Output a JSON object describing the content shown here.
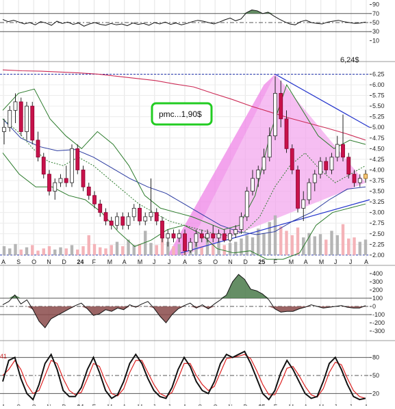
{
  "chart_data": [
    {
      "panel": "rsi",
      "type": "line",
      "y_ticks": [
        90,
        70,
        50,
        30,
        10
      ],
      "ylim": [
        0,
        100
      ],
      "levels": [
        70,
        50,
        30
      ],
      "grid": true,
      "series": [
        {
          "values": [
            57,
            52,
            55,
            51,
            47,
            50,
            45,
            52,
            49,
            44,
            53,
            48,
            51,
            46,
            49,
            42,
            47,
            50,
            46,
            44,
            48,
            45,
            47,
            43,
            49,
            46,
            48,
            44,
            50,
            47,
            51,
            46,
            49,
            45,
            48,
            52,
            55,
            53,
            50,
            47,
            51,
            56,
            60,
            54,
            58,
            72,
            78,
            76,
            70,
            73,
            65,
            58,
            52,
            47,
            45,
            52,
            55,
            50,
            48,
            47,
            51,
            53,
            55,
            52,
            50,
            48,
            49,
            51
          ]
        }
      ],
      "fill_above": 70,
      "fill_color": "#4a7a4a"
    },
    {
      "panel": "price",
      "type": "candlestick",
      "y_ticks": [
        "6.25",
        "6.00",
        "5.75",
        "5.50",
        "5.25",
        "5.00",
        "4.75",
        "4.50",
        "4.25",
        "4.00",
        "3.75",
        "3.50",
        "3.25",
        "3.00",
        "2.75",
        "2.50",
        "2.25",
        "2.00"
      ],
      "ylim": [
        1.95,
        6.45
      ],
      "x_ticks": [
        "A",
        "S",
        "O",
        "N",
        "D",
        "24",
        "F",
        "M",
        "A",
        "M",
        "J",
        "J",
        "A",
        "S",
        "O",
        "N",
        "D",
        "25",
        "F",
        "M",
        "A",
        "M",
        "J",
        "J",
        "A"
      ],
      "annotations": {
        "price_label": "6,24$",
        "badge": "pmc...1,90$"
      },
      "candles": [
        {
          "o": 4.9,
          "h": 5.2,
          "l": 4.6,
          "c": 5.0
        },
        {
          "o": 5.0,
          "h": 5.5,
          "l": 4.9,
          "c": 5.4
        },
        {
          "o": 5.4,
          "h": 5.8,
          "l": 5.1,
          "c": 5.6
        },
        {
          "o": 5.6,
          "h": 5.7,
          "l": 4.8,
          "c": 4.9
        },
        {
          "o": 4.9,
          "h": 5.6,
          "l": 4.7,
          "c": 5.5
        },
        {
          "o": 5.5,
          "h": 5.6,
          "l": 4.6,
          "c": 4.7
        },
        {
          "o": 4.7,
          "h": 4.9,
          "l": 4.2,
          "c": 4.3
        },
        {
          "o": 4.3,
          "h": 4.4,
          "l": 3.8,
          "c": 3.9
        },
        {
          "o": 3.9,
          "h": 4.0,
          "l": 3.4,
          "c": 3.5
        },
        {
          "o": 3.5,
          "h": 3.8,
          "l": 3.3,
          "c": 3.7
        },
        {
          "o": 3.7,
          "h": 3.9,
          "l": 3.6,
          "c": 3.8
        },
        {
          "o": 3.8,
          "h": 4.1,
          "l": 3.6,
          "c": 3.7
        },
        {
          "o": 3.7,
          "h": 4.6,
          "l": 3.6,
          "c": 4.5
        },
        {
          "o": 4.5,
          "h": 4.6,
          "l": 3.9,
          "c": 4.0
        },
        {
          "o": 4.0,
          "h": 4.1,
          "l": 3.5,
          "c": 3.6
        },
        {
          "o": 3.6,
          "h": 3.7,
          "l": 3.3,
          "c": 3.4
        },
        {
          "o": 3.4,
          "h": 3.5,
          "l": 3.1,
          "c": 3.2
        },
        {
          "o": 3.2,
          "h": 3.3,
          "l": 2.9,
          "c": 3.0
        },
        {
          "o": 3.0,
          "h": 3.1,
          "l": 2.7,
          "c": 2.8
        },
        {
          "o": 2.8,
          "h": 2.9,
          "l": 2.6,
          "c": 2.7
        },
        {
          "o": 2.7,
          "h": 3.0,
          "l": 2.6,
          "c": 2.9
        },
        {
          "o": 2.9,
          "h": 3.0,
          "l": 2.6,
          "c": 2.7
        },
        {
          "o": 2.7,
          "h": 3.0,
          "l": 2.6,
          "c": 2.9
        },
        {
          "o": 2.9,
          "h": 3.2,
          "l": 2.8,
          "c": 3.1
        },
        {
          "o": 3.1,
          "h": 3.2,
          "l": 2.7,
          "c": 2.8
        },
        {
          "o": 2.8,
          "h": 3.0,
          "l": 2.7,
          "c": 2.9
        },
        {
          "o": 2.9,
          "h": 3.8,
          "l": 2.8,
          "c": 3.0
        },
        {
          "o": 3.0,
          "h": 3.1,
          "l": 2.7,
          "c": 2.8
        },
        {
          "o": 2.8,
          "h": 2.9,
          "l": 2.3,
          "c": 2.4
        },
        {
          "o": 2.4,
          "h": 2.6,
          "l": 2.2,
          "c": 2.5
        },
        {
          "o": 2.5,
          "h": 2.6,
          "l": 2.3,
          "c": 2.4
        },
        {
          "o": 2.4,
          "h": 2.6,
          "l": 2.3,
          "c": 2.5
        },
        {
          "o": 2.5,
          "h": 2.6,
          "l": 2.0,
          "c": 2.1
        },
        {
          "o": 2.1,
          "h": 2.4,
          "l": 2.05,
          "c": 2.3
        },
        {
          "o": 2.3,
          "h": 2.6,
          "l": 2.2,
          "c": 2.5
        },
        {
          "o": 2.5,
          "h": 2.6,
          "l": 2.3,
          "c": 2.4
        },
        {
          "o": 2.4,
          "h": 2.6,
          "l": 2.3,
          "c": 2.5
        },
        {
          "o": 2.5,
          "h": 2.7,
          "l": 2.3,
          "c": 2.4
        },
        {
          "o": 2.4,
          "h": 2.6,
          "l": 2.3,
          "c": 2.5
        },
        {
          "o": 2.5,
          "h": 2.6,
          "l": 2.3,
          "c": 2.35
        },
        {
          "o": 2.35,
          "h": 2.6,
          "l": 2.3,
          "c": 2.5
        },
        {
          "o": 2.5,
          "h": 2.7,
          "l": 2.4,
          "c": 2.6
        },
        {
          "o": 2.6,
          "h": 3.0,
          "l": 2.5,
          "c": 2.9
        },
        {
          "o": 2.9,
          "h": 3.6,
          "l": 2.8,
          "c": 3.5
        },
        {
          "o": 3.5,
          "h": 4.0,
          "l": 3.4,
          "c": 3.8
        },
        {
          "o": 3.8,
          "h": 4.1,
          "l": 3.6,
          "c": 4.0
        },
        {
          "o": 4.0,
          "h": 4.5,
          "l": 3.9,
          "c": 4.3
        },
        {
          "o": 4.3,
          "h": 5.0,
          "l": 4.2,
          "c": 4.8
        },
        {
          "o": 4.8,
          "h": 6.2,
          "l": 4.7,
          "c": 5.8
        },
        {
          "o": 5.8,
          "h": 6.1,
          "l": 5.0,
          "c": 5.2
        },
        {
          "o": 5.2,
          "h": 5.4,
          "l": 4.4,
          "c": 4.5
        },
        {
          "o": 4.5,
          "h": 4.6,
          "l": 3.9,
          "c": 4.0
        },
        {
          "o": 4.0,
          "h": 4.1,
          "l": 3.0,
          "c": 3.1
        },
        {
          "o": 3.1,
          "h": 3.5,
          "l": 2.8,
          "c": 3.3
        },
        {
          "o": 3.3,
          "h": 3.8,
          "l": 3.2,
          "c": 3.7
        },
        {
          "o": 3.7,
          "h": 4.0,
          "l": 3.5,
          "c": 3.9
        },
        {
          "o": 3.9,
          "h": 4.3,
          "l": 3.8,
          "c": 4.2
        },
        {
          "o": 4.2,
          "h": 4.3,
          "l": 3.9,
          "c": 4.0
        },
        {
          "o": 4.0,
          "h": 4.4,
          "l": 3.9,
          "c": 4.3
        },
        {
          "o": 4.3,
          "h": 4.8,
          "l": 4.2,
          "c": 4.6
        },
        {
          "o": 4.6,
          "h": 5.3,
          "l": 4.2,
          "c": 4.3
        },
        {
          "o": 4.3,
          "h": 4.4,
          "l": 3.8,
          "c": 3.9
        },
        {
          "o": 3.9,
          "h": 4.0,
          "l": 3.6,
          "c": 3.7
        },
        {
          "o": 3.7,
          "h": 3.9,
          "l": 3.6,
          "c": 3.8
        },
        {
          "o": 3.8,
          "h": 4.0,
          "l": 3.7,
          "c": 3.9
        }
      ],
      "volume": [
        8,
        6,
        10,
        5,
        7,
        9,
        4,
        6,
        8,
        5,
        7,
        6,
        9,
        5,
        8,
        18,
        10,
        7,
        6,
        9,
        12,
        8,
        14,
        9,
        10,
        22,
        11,
        9,
        16,
        12,
        8,
        10,
        20,
        9,
        11,
        8,
        14,
        10,
        13,
        9,
        11,
        12,
        15,
        18,
        16,
        24,
        20,
        30,
        36,
        26,
        22,
        18,
        25,
        16,
        20,
        17,
        19,
        14,
        22,
        18,
        28,
        15,
        16,
        12,
        14
      ],
      "series": [
        {
          "role": "ma_long",
          "color": "#cc2a55",
          "values": [
            6.35,
            6.33,
            6.32,
            6.3,
            6.28,
            6.25,
            6.2,
            6.15,
            6.1,
            6.02,
            5.95,
            5.8,
            5.66,
            5.5,
            5.36,
            5.22,
            5.1,
            4.98,
            4.85,
            4.7
          ]
        },
        {
          "role": "ma_mid",
          "color": "#2a3aa0",
          "values": [
            5.2,
            4.75,
            4.55,
            4.45,
            4.48,
            4.3,
            4.05,
            3.8,
            3.6,
            3.45,
            3.2,
            2.95,
            2.7,
            2.55,
            2.48,
            2.55,
            2.8,
            3.0,
            3.3,
            3.55,
            3.6
          ]
        },
        {
          "role": "ma_short",
          "color": "#2a7a2a",
          "values": [
            5.2,
            4.9,
            4.5,
            4.2,
            4.1,
            4.3,
            4.1,
            3.8,
            3.5,
            3.2,
            3.0,
            2.8,
            2.7,
            2.6,
            2.5,
            2.45,
            2.55,
            2.9,
            3.6,
            4.1,
            4.4,
            4.0,
            3.7,
            3.9,
            4.1
          ]
        },
        {
          "role": "bb_upper",
          "color": "#2a7a2a",
          "values": [
            5.4,
            5.8,
            5.9,
            5.2,
            4.8,
            4.5,
            4.9,
            4.6,
            4.1,
            3.4,
            3.1,
            3.0,
            2.9,
            2.75,
            2.6,
            2.7,
            3.4,
            4.9,
            6.0,
            5.4,
            4.8,
            4.5,
            4.7,
            4.6
          ]
        },
        {
          "role": "bb_lower",
          "color": "#2a7a2a",
          "values": [
            4.4,
            3.9,
            3.6,
            3.6,
            3.4,
            3.3,
            3.0,
            2.55,
            2.2,
            2.35,
            2.6,
            2.7,
            2.5,
            2.15,
            2.05,
            2.1,
            1.9,
            1.9,
            2.05,
            2.7,
            3.0,
            3.1,
            3.2
          ]
        }
      ],
      "channel": {
        "upper_start": 6.25,
        "upper_end": 5.0,
        "lower_start": 2.05,
        "lower_end": 3.3
      },
      "legend": "none"
    },
    {
      "panel": "cci",
      "type": "line",
      "y_ticks": [
        400,
        300,
        200,
        100,
        0,
        -100,
        -200,
        -300
      ],
      "ylim": [
        -350,
        450
      ],
      "levels": [
        100,
        0,
        -100
      ],
      "grid": true,
      "series": [
        {
          "values": [
            20,
            60,
            140,
            30,
            80,
            -40,
            -180,
            -260,
            -150,
            -110,
            -70,
            -30,
            10,
            40,
            -30,
            -110,
            -90,
            -40,
            -60,
            -20,
            -40,
            20,
            -10,
            30,
            60,
            -20,
            -120,
            -200,
            -100,
            -30,
            10,
            40,
            -20,
            20,
            -30,
            30,
            80,
            140,
            300,
            390,
            330,
            210,
            190,
            150,
            80,
            -30,
            -70,
            -60,
            -60,
            -30,
            -10,
            20,
            0,
            -20,
            -10,
            0,
            10,
            -10,
            -20,
            -20,
            10
          ]
        }
      ]
    },
    {
      "panel": "stochastic",
      "type": "line",
      "y_ticks": [
        80,
        50,
        20
      ],
      "ylim": [
        0,
        100
      ],
      "levels": [
        80,
        50,
        20
      ],
      "grid": true,
      "legend_label": "41",
      "series": [
        {
          "color": "#111111",
          "values": [
            40,
            75,
            80,
            45,
            20,
            10,
            35,
            70,
            85,
            60,
            25,
            15,
            15,
            30,
            60,
            80,
            55,
            25,
            12,
            18,
            40,
            70,
            85,
            70,
            45,
            25,
            15,
            12,
            30,
            60,
            80,
            65,
            40,
            25,
            20,
            40,
            70,
            85,
            80,
            85,
            90,
            70,
            45,
            20,
            10,
            25,
            55,
            75,
            60,
            40,
            20,
            12,
            15,
            40,
            70,
            80,
            60,
            35,
            15,
            10,
            12
          ]
        },
        {
          "color": "#dd2222",
          "values": [
            50,
            60,
            75,
            60,
            35,
            20,
            25,
            50,
            75,
            70,
            45,
            25,
            18,
            22,
            45,
            70,
            65,
            40,
            20,
            16,
            28,
            55,
            75,
            75,
            55,
            35,
            20,
            15,
            22,
            45,
            70,
            70,
            50,
            35,
            25,
            32,
            55,
            78,
            80,
            82,
            85,
            78,
            58,
            35,
            18,
            18,
            38,
            62,
            65,
            50,
            32,
            18,
            14,
            28,
            55,
            72,
            68,
            45,
            25,
            15,
            12
          ]
        }
      ]
    }
  ]
}
